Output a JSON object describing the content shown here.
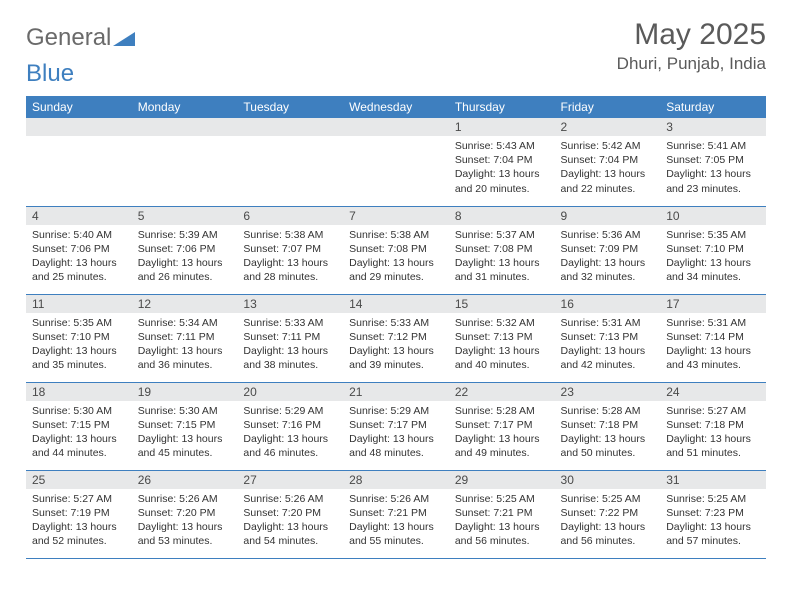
{
  "logo": {
    "text1": "General",
    "text2": "Blue"
  },
  "title": {
    "month": "May 2025",
    "location": "Dhuri, Punjab, India"
  },
  "style": {
    "header_bg": "#3e7fbf",
    "header_fg": "#ffffff",
    "band_bg": "#e7e8e9",
    "border_color": "#3e7fbf",
    "day_font_size": 10.5,
    "daynum_font_size": 12,
    "title_font_size": 30,
    "loc_font_size": 17
  },
  "columns": [
    "Sunday",
    "Monday",
    "Tuesday",
    "Wednesday",
    "Thursday",
    "Friday",
    "Saturday"
  ],
  "weeks": [
    [
      {
        "n": "",
        "sr": "",
        "ss": "",
        "dl": ""
      },
      {
        "n": "",
        "sr": "",
        "ss": "",
        "dl": ""
      },
      {
        "n": "",
        "sr": "",
        "ss": "",
        "dl": ""
      },
      {
        "n": "",
        "sr": "",
        "ss": "",
        "dl": ""
      },
      {
        "n": "1",
        "sr": "5:43 AM",
        "ss": "7:04 PM",
        "dl": "13 hours and 20 minutes."
      },
      {
        "n": "2",
        "sr": "5:42 AM",
        "ss": "7:04 PM",
        "dl": "13 hours and 22 minutes."
      },
      {
        "n": "3",
        "sr": "5:41 AM",
        "ss": "7:05 PM",
        "dl": "13 hours and 23 minutes."
      }
    ],
    [
      {
        "n": "4",
        "sr": "5:40 AM",
        "ss": "7:06 PM",
        "dl": "13 hours and 25 minutes."
      },
      {
        "n": "5",
        "sr": "5:39 AM",
        "ss": "7:06 PM",
        "dl": "13 hours and 26 minutes."
      },
      {
        "n": "6",
        "sr": "5:38 AM",
        "ss": "7:07 PM",
        "dl": "13 hours and 28 minutes."
      },
      {
        "n": "7",
        "sr": "5:38 AM",
        "ss": "7:08 PM",
        "dl": "13 hours and 29 minutes."
      },
      {
        "n": "8",
        "sr": "5:37 AM",
        "ss": "7:08 PM",
        "dl": "13 hours and 31 minutes."
      },
      {
        "n": "9",
        "sr": "5:36 AM",
        "ss": "7:09 PM",
        "dl": "13 hours and 32 minutes."
      },
      {
        "n": "10",
        "sr": "5:35 AM",
        "ss": "7:10 PM",
        "dl": "13 hours and 34 minutes."
      }
    ],
    [
      {
        "n": "11",
        "sr": "5:35 AM",
        "ss": "7:10 PM",
        "dl": "13 hours and 35 minutes."
      },
      {
        "n": "12",
        "sr": "5:34 AM",
        "ss": "7:11 PM",
        "dl": "13 hours and 36 minutes."
      },
      {
        "n": "13",
        "sr": "5:33 AM",
        "ss": "7:11 PM",
        "dl": "13 hours and 38 minutes."
      },
      {
        "n": "14",
        "sr": "5:33 AM",
        "ss": "7:12 PM",
        "dl": "13 hours and 39 minutes."
      },
      {
        "n": "15",
        "sr": "5:32 AM",
        "ss": "7:13 PM",
        "dl": "13 hours and 40 minutes."
      },
      {
        "n": "16",
        "sr": "5:31 AM",
        "ss": "7:13 PM",
        "dl": "13 hours and 42 minutes."
      },
      {
        "n": "17",
        "sr": "5:31 AM",
        "ss": "7:14 PM",
        "dl": "13 hours and 43 minutes."
      }
    ],
    [
      {
        "n": "18",
        "sr": "5:30 AM",
        "ss": "7:15 PM",
        "dl": "13 hours and 44 minutes."
      },
      {
        "n": "19",
        "sr": "5:30 AM",
        "ss": "7:15 PM",
        "dl": "13 hours and 45 minutes."
      },
      {
        "n": "20",
        "sr": "5:29 AM",
        "ss": "7:16 PM",
        "dl": "13 hours and 46 minutes."
      },
      {
        "n": "21",
        "sr": "5:29 AM",
        "ss": "7:17 PM",
        "dl": "13 hours and 48 minutes."
      },
      {
        "n": "22",
        "sr": "5:28 AM",
        "ss": "7:17 PM",
        "dl": "13 hours and 49 minutes."
      },
      {
        "n": "23",
        "sr": "5:28 AM",
        "ss": "7:18 PM",
        "dl": "13 hours and 50 minutes."
      },
      {
        "n": "24",
        "sr": "5:27 AM",
        "ss": "7:18 PM",
        "dl": "13 hours and 51 minutes."
      }
    ],
    [
      {
        "n": "25",
        "sr": "5:27 AM",
        "ss": "7:19 PM",
        "dl": "13 hours and 52 minutes."
      },
      {
        "n": "26",
        "sr": "5:26 AM",
        "ss": "7:20 PM",
        "dl": "13 hours and 53 minutes."
      },
      {
        "n": "27",
        "sr": "5:26 AM",
        "ss": "7:20 PM",
        "dl": "13 hours and 54 minutes."
      },
      {
        "n": "28",
        "sr": "5:26 AM",
        "ss": "7:21 PM",
        "dl": "13 hours and 55 minutes."
      },
      {
        "n": "29",
        "sr": "5:25 AM",
        "ss": "7:21 PM",
        "dl": "13 hours and 56 minutes."
      },
      {
        "n": "30",
        "sr": "5:25 AM",
        "ss": "7:22 PM",
        "dl": "13 hours and 56 minutes."
      },
      {
        "n": "31",
        "sr": "5:25 AM",
        "ss": "7:23 PM",
        "dl": "13 hours and 57 minutes."
      }
    ]
  ],
  "labels": {
    "sunrise": "Sunrise:",
    "sunset": "Sunset:",
    "daylight": "Daylight:"
  }
}
